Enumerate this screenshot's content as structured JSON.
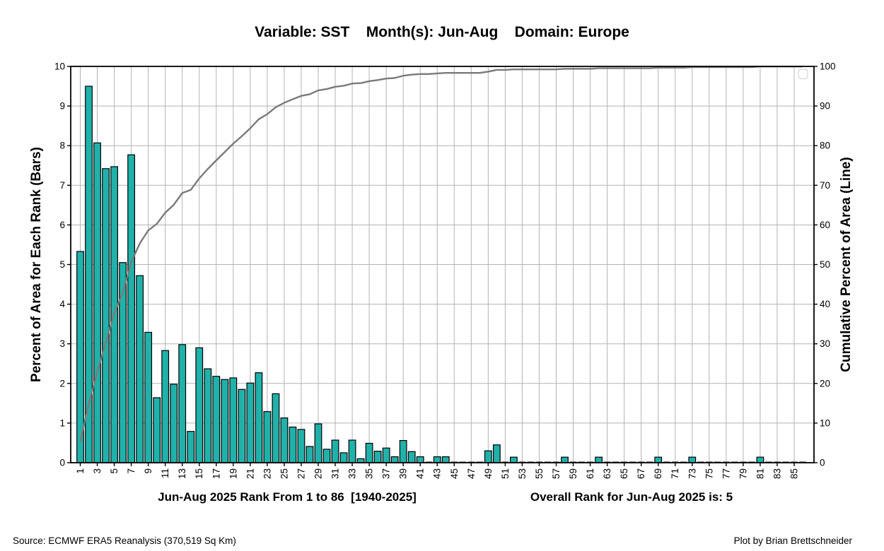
{
  "title": "Variable: SST    Month(s): Jun-Aug    Domain: Europe",
  "xlabel_left": "Jun-Aug 2025 Rank From 1 to 86  [1940-2025]",
  "xlabel_right": "Overall Rank for Jun-Aug 2025 is: 5",
  "footer": {
    "source": "Source: ECMWF ERA5 Reanalysis (370,519 Sq Km)",
    "credit": "Plot by Brian Brettschneider"
  },
  "chart_data": {
    "type": "bar",
    "title": "Variable: SST    Month(s): Jun-Aug    Domain: Europe",
    "xlabel": "Jun-Aug 2025 Rank From 1 to 86  [1940-2025]",
    "ylabel_left": "Percent of Area for Each Rank (Bars)",
    "ylabel_right": "Cumulative Percent of Area (Line)",
    "annotation": "Overall Rank for Jun-Aug 2025 is: 5",
    "x": [
      1,
      2,
      3,
      4,
      5,
      6,
      7,
      8,
      9,
      10,
      11,
      12,
      13,
      14,
      15,
      16,
      17,
      18,
      19,
      20,
      21,
      22,
      23,
      24,
      25,
      26,
      27,
      28,
      29,
      30,
      31,
      32,
      33,
      34,
      35,
      36,
      37,
      38,
      39,
      40,
      41,
      42,
      43,
      44,
      45,
      46,
      47,
      48,
      49,
      50,
      51,
      52,
      53,
      54,
      55,
      56,
      57,
      58,
      59,
      60,
      61,
      62,
      63,
      64,
      65,
      66,
      67,
      68,
      69,
      70,
      71,
      72,
      73,
      74,
      75,
      76,
      77,
      78,
      79,
      80,
      81,
      82,
      83,
      84,
      85,
      86
    ],
    "series": [
      {
        "name": "Percent of Area for Each Rank (Bars)",
        "type": "bar",
        "axis": "left",
        "values": [
          5.33,
          9.5,
          8.07,
          7.42,
          7.47,
          5.05,
          7.77,
          4.72,
          3.29,
          1.64,
          2.83,
          1.98,
          2.98,
          0.79,
          2.9,
          2.37,
          2.18,
          2.1,
          2.14,
          1.85,
          2.01,
          2.27,
          1.29,
          1.74,
          1.13,
          0.9,
          0.84,
          0.41,
          0.98,
          0.34,
          0.57,
          0.25,
          0.57,
          0.1,
          0.49,
          0.29,
          0.37,
          0.15,
          0.56,
          0.28,
          0.15,
          0,
          0.15,
          0.15,
          0,
          0,
          0,
          0,
          0.3,
          0.45,
          0,
          0.14,
          0,
          0,
          0,
          0,
          0,
          0.14,
          0,
          0,
          0,
          0.14,
          0,
          0,
          0,
          0,
          0,
          0,
          0.14,
          0,
          0,
          0,
          0.14,
          0,
          0,
          0,
          0,
          0,
          0,
          0,
          0.14,
          0,
          0,
          0,
          0,
          0
        ]
      },
      {
        "name": "Cumulative Percent of Area (Line)",
        "type": "line",
        "axis": "right",
        "values": [
          5.33,
          14.83,
          22.9,
          30.32,
          37.79,
          42.84,
          50.61,
          55.33,
          58.62,
          60.26,
          63.09,
          65.07,
          68.05,
          68.84,
          71.74,
          74.11,
          76.29,
          78.39,
          80.53,
          82.38,
          84.39,
          86.66,
          87.95,
          89.69,
          90.82,
          91.72,
          92.56,
          92.97,
          93.95,
          94.29,
          94.86,
          95.11,
          95.68,
          95.78,
          96.27,
          96.56,
          96.93,
          97.08,
          97.64,
          97.92,
          98.07,
          98.07,
          98.22,
          98.37,
          98.37,
          98.37,
          98.37,
          98.37,
          98.67,
          99.12,
          99.12,
          99.26,
          99.26,
          99.26,
          99.26,
          99.26,
          99.26,
          99.4,
          99.4,
          99.4,
          99.4,
          99.54,
          99.54,
          99.54,
          99.54,
          99.54,
          99.54,
          99.54,
          99.68,
          99.68,
          99.68,
          99.68,
          99.82,
          99.82,
          99.82,
          99.82,
          99.82,
          99.82,
          99.82,
          99.82,
          99.96,
          99.96,
          99.96,
          99.96,
          99.96,
          99.96
        ]
      }
    ],
    "ylim_left": [
      0,
      10
    ],
    "ylim_right": [
      0,
      100
    ],
    "y_ticks_left": [
      0,
      1,
      2,
      3,
      4,
      5,
      6,
      7,
      8,
      9,
      10
    ],
    "y_ticks_right": [
      0,
      10,
      20,
      30,
      40,
      50,
      60,
      70,
      80,
      90,
      100
    ],
    "x_tick_labels": [
      1,
      3,
      5,
      7,
      9,
      11,
      13,
      15,
      17,
      19,
      21,
      23,
      25,
      27,
      29,
      31,
      33,
      35,
      37,
      39,
      41,
      43,
      45,
      47,
      49,
      51,
      53,
      55,
      57,
      59,
      61,
      63,
      65,
      67,
      69,
      71,
      73,
      75,
      77,
      79,
      81,
      83,
      85
    ],
    "grid": true,
    "legend": "empty-box-top-right",
    "colors": {
      "bar_fill": "#20b2aa",
      "bar_edge": "#000000",
      "line": "#7a7a7a",
      "grid": "#b3b3b3",
      "spine": "#000000",
      "legend_border": "#d4d4d4",
      "background": "#ffffff"
    }
  }
}
